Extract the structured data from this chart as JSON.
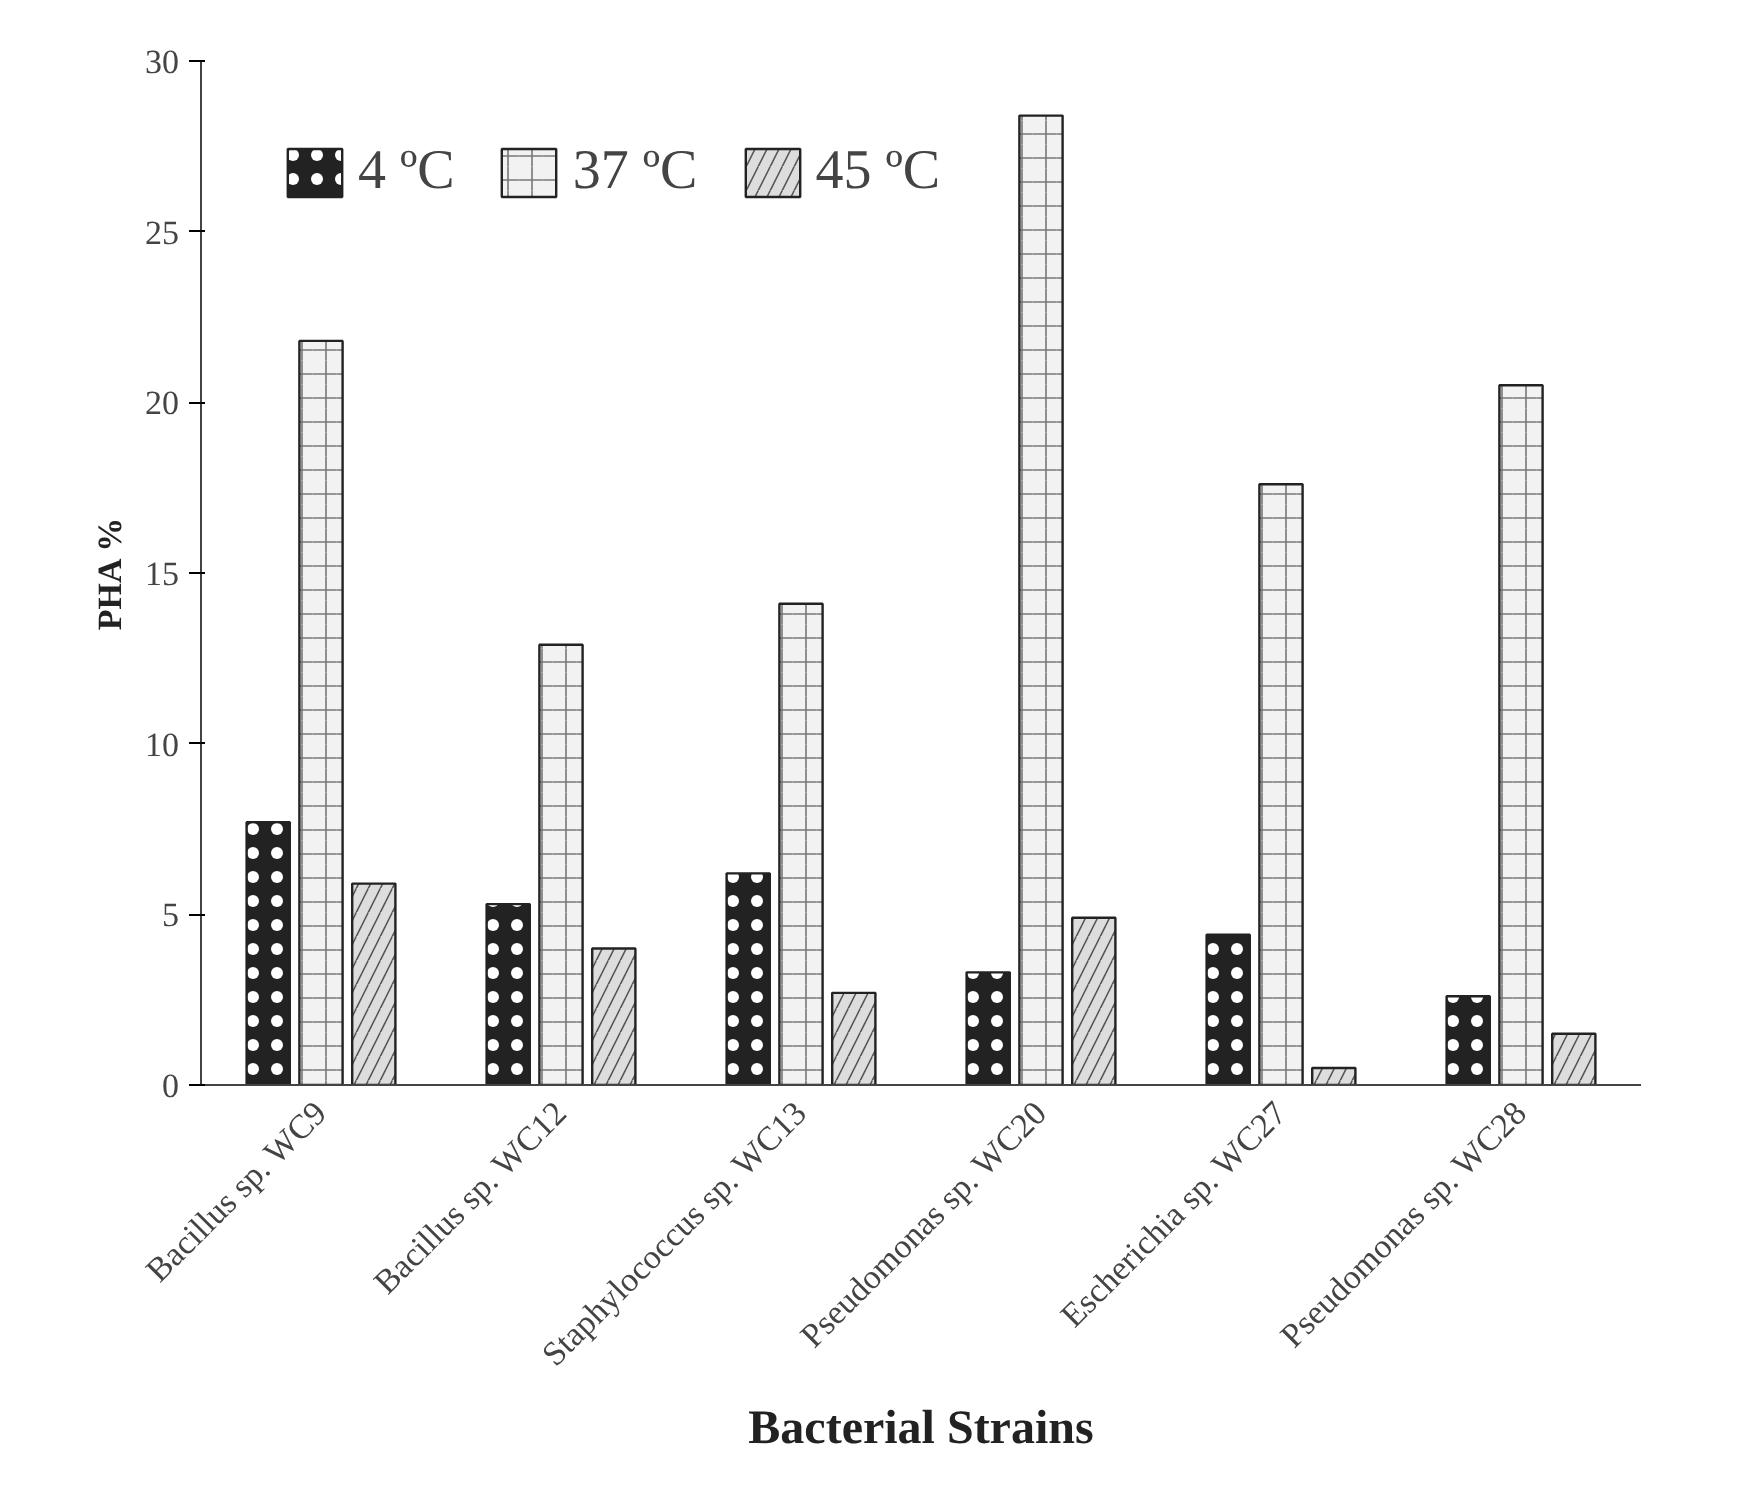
{
  "chart_data": {
    "type": "bar",
    "xlabel": "Bacterial Strains",
    "ylabel": "PHA %",
    "categories": [
      "Bacillus sp. WC9",
      "Bacillus sp. WC12",
      "Staphylococcus sp. WC13",
      "Pseudomonas sp. WC20",
      "Escherichia sp. WC27",
      "Pseudomonas sp. WC28"
    ],
    "series": [
      {
        "name": "4 ºC",
        "color": "#222222",
        "values": [
          7.7,
          5.3,
          6.2,
          3.3,
          4.4,
          2.6
        ]
      },
      {
        "name": "37 ºC",
        "color": "#f2f2f2",
        "values": [
          21.8,
          12.9,
          14.1,
          28.4,
          17.6,
          20.5
        ]
      },
      {
        "name": "45 ºC",
        "color": "#dddddd",
        "values": [
          5.9,
          4.0,
          2.7,
          4.9,
          0.5,
          1.5
        ]
      }
    ],
    "ylim": [
      0,
      30
    ],
    "yticks": [
      0,
      5,
      10,
      15,
      20,
      25,
      30
    ],
    "grid": false,
    "legend": "top left"
  }
}
